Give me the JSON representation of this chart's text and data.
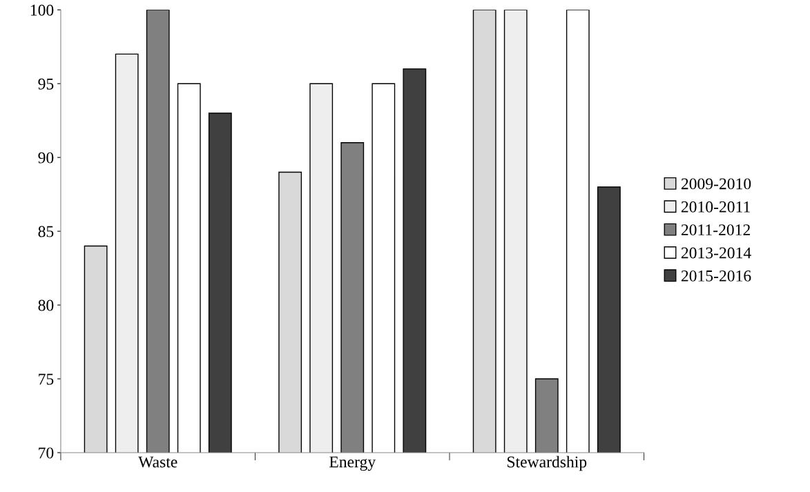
{
  "chart_data": {
    "type": "bar",
    "categories": [
      "Waste",
      "Energy",
      "Stewardship"
    ],
    "series": [
      {
        "name": "2009-2010",
        "color": "#d9d9d9",
        "values": [
          84,
          89,
          100
        ]
      },
      {
        "name": "2010-2011",
        "color": "#eeeeee",
        "values": [
          97,
          95,
          100
        ]
      },
      {
        "name": "2011-2012",
        "color": "#808080",
        "values": [
          100,
          91,
          75
        ]
      },
      {
        "name": "2013-2014",
        "color": "#ffffff",
        "values": [
          95,
          95,
          100
        ]
      },
      {
        "name": "2015-2016",
        "color": "#404040",
        "values": [
          93,
          96,
          88
        ]
      }
    ],
    "ylim": [
      70,
      100
    ],
    "yticks": [
      70,
      75,
      80,
      85,
      90,
      95,
      100
    ],
    "grid": false,
    "legend": "right"
  }
}
